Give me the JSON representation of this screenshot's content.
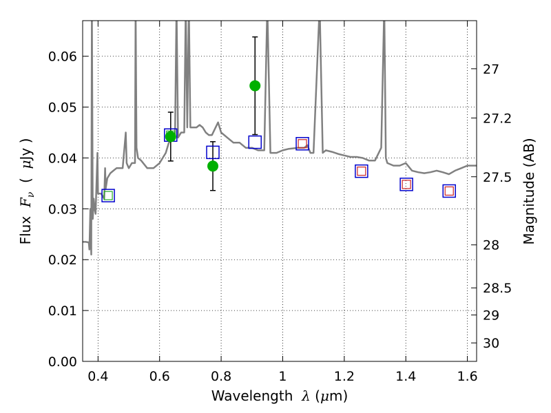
{
  "chart_data": {
    "type": "scatter",
    "title": "",
    "xlabel": "Wavelength",
    "xlabel_symbol": "λ",
    "xlabel_unit_open": " (",
    "xlabel_unit_mu": "μ",
    "xlabel_unit_close": "m)",
    "ylabel": "Flux",
    "ylabel_symbol": "F",
    "ylabel_symbol_sub": "ν",
    "ylabel_unit_open": "(",
    "ylabel_unit_mu": "μ",
    "ylabel_unit_close": "Jy )",
    "y2label": "Magnitude (AB)",
    "xlim": [
      0.35,
      1.63
    ],
    "ylim": [
      0.0,
      0.067
    ],
    "grid": true,
    "grid_style": "dotted",
    "xticks": [
      0.4,
      0.6,
      0.8,
      1.0,
      1.2,
      1.4,
      1.6
    ],
    "xtick_labels": [
      "0.4",
      "0.6",
      "0.8",
      "1",
      "1.2",
      "1.4",
      "1.6"
    ],
    "yticks": [
      0.0,
      0.01,
      0.02,
      0.03,
      0.04,
      0.05,
      0.06
    ],
    "ytick_labels": [
      "0.00",
      "0.01",
      "0.02",
      "0.03",
      "0.04",
      "0.05",
      "0.06"
    ],
    "y2ticks": [
      27,
      27.2,
      27.5,
      28,
      28.5,
      29,
      30
    ],
    "y2tick_labels": [
      "27",
      "27.2",
      "27.5",
      "28",
      "28.5",
      "29",
      "30"
    ],
    "colors": {
      "template": "#808080",
      "observed": "#00b000",
      "model_box": "#0000cc",
      "model_inner_green": "#22aa22",
      "model_inner_red": "#cc2222",
      "errorbar": "#000000"
    },
    "series": [
      {
        "style": "line",
        "x": [
          0.35,
          0.36,
          0.37,
          0.372,
          0.375,
          0.378,
          0.38,
          0.383,
          0.386,
          0.389,
          0.392,
          0.395,
          0.398,
          0.4,
          0.41,
          0.42,
          0.423,
          0.425,
          0.43,
          0.44,
          0.45,
          0.46,
          0.48,
          0.49,
          0.493,
          0.5,
          0.51,
          0.52,
          0.522,
          0.525,
          0.53,
          0.54,
          0.56,
          0.58,
          0.6,
          0.62,
          0.63,
          0.65,
          0.655,
          0.66,
          0.67,
          0.68,
          0.685,
          0.69,
          0.695,
          0.7,
          0.72,
          0.73,
          0.74,
          0.75,
          0.76,
          0.77,
          0.79,
          0.8,
          0.82,
          0.84,
          0.86,
          0.88,
          0.9,
          0.92,
          0.94,
          0.95,
          0.96,
          0.98,
          1.0,
          1.02,
          1.05,
          1.07,
          1.08,
          1.09,
          1.1,
          1.12,
          1.13,
          1.14,
          1.16,
          1.18,
          1.2,
          1.22,
          1.24,
          1.26,
          1.28,
          1.3,
          1.32,
          1.33,
          1.335,
          1.34,
          1.36,
          1.38,
          1.4,
          1.42,
          1.44,
          1.46,
          1.48,
          1.5,
          1.52,
          1.54,
          1.56,
          1.58,
          1.6,
          1.63
        ],
        "y": [
          0.0235,
          0.0235,
          0.0234,
          0.022,
          0.03,
          0.021,
          0.07,
          0.028,
          0.032,
          0.03,
          0.029,
          0.035,
          0.041,
          0.033,
          0.033,
          0.032,
          0.038,
          0.034,
          0.036,
          0.037,
          0.0375,
          0.038,
          0.038,
          0.045,
          0.039,
          0.038,
          0.039,
          0.039,
          0.07,
          0.042,
          0.04,
          0.0395,
          0.038,
          0.038,
          0.039,
          0.041,
          0.043,
          0.044,
          0.07,
          0.044,
          0.045,
          0.045,
          0.07,
          0.046,
          0.07,
          0.046,
          0.046,
          0.0465,
          0.046,
          0.045,
          0.0445,
          0.0445,
          0.047,
          0.045,
          0.044,
          0.043,
          0.043,
          0.042,
          0.042,
          0.0415,
          0.0415,
          0.07,
          0.041,
          0.041,
          0.0415,
          0.0418,
          0.042,
          0.042,
          0.0425,
          0.041,
          0.041,
          0.07,
          0.041,
          0.0415,
          0.0412,
          0.0408,
          0.0405,
          0.0402,
          0.0402,
          0.04,
          0.0395,
          0.0395,
          0.042,
          0.07,
          0.04,
          0.039,
          0.0385,
          0.0385,
          0.039,
          0.0375,
          0.0372,
          0.037,
          0.0372,
          0.0375,
          0.0372,
          0.0368,
          0.0375,
          0.038,
          0.0385,
          0.0385
        ]
      },
      {
        "style": "markers",
        "marker": "circle",
        "x": [
          0.636,
          0.773,
          0.91
        ],
        "y": [
          0.0442,
          0.0384,
          0.0542
        ],
        "yerr_low": [
          0.0048,
          0.0048,
          0.0096
        ],
        "yerr_high": [
          0.0048,
          0.0048,
          0.0096
        ]
      },
      {
        "style": "markers",
        "marker": "square-open",
        "x": [
          0.433,
          0.636,
          0.773,
          0.91,
          1.064,
          1.256,
          1.402,
          1.541
        ],
        "y": [
          0.0326,
          0.0445,
          0.0411,
          0.0431,
          0.0428,
          0.0374,
          0.0348,
          0.0335
        ],
        "inner": [
          "green",
          "green",
          "none",
          "none",
          "red",
          "red",
          "red",
          "red"
        ]
      }
    ]
  }
}
